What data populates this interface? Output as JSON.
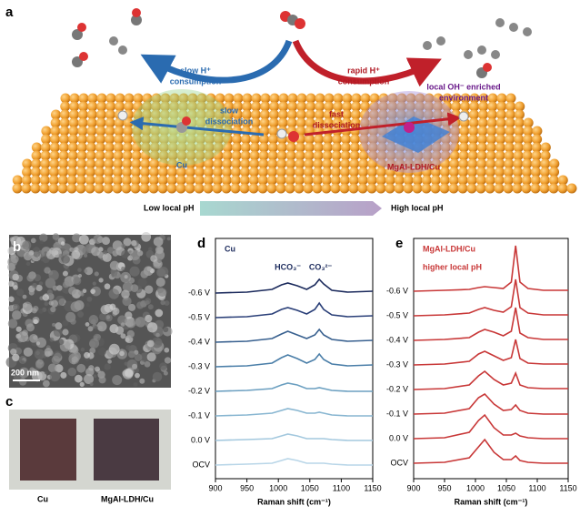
{
  "panel_a": {
    "label": "a",
    "slow_h_consumption": [
      "slow H⁺",
      "consumption"
    ],
    "rapid_h_consumption": [
      "rapid H⁺",
      "consumption"
    ],
    "slow_dissociation": [
      "slow",
      "dissociation"
    ],
    "fast_dissociation": [
      "fast",
      "dissociation"
    ],
    "local_oh": [
      "local OH⁻ enriched",
      "environment"
    ],
    "cu": "Cu",
    "ldh": "MgAl-LDH/Cu",
    "low_ph": "Low local pH",
    "high_ph": "High local pH"
  },
  "panel_b": {
    "label": "b",
    "scale_bar": "200 nm"
  },
  "panel_c": {
    "label": "c",
    "samples": [
      "Cu",
      "MgAl-LDH/Cu"
    ]
  },
  "chart_data": [
    {
      "type": "line",
      "panel_label": "d",
      "title": "Cu",
      "annotations": [
        "HCO₃⁻",
        "CO₃²⁻"
      ],
      "xlabel": "Raman shift (cm⁻¹)",
      "xlim": [
        900,
        1150
      ],
      "xticks": [
        900,
        950,
        1000,
        1050,
        1100,
        1150
      ],
      "x": [
        900,
        950,
        990,
        1005,
        1015,
        1030,
        1045,
        1058,
        1065,
        1072,
        1085,
        1110,
        1150
      ],
      "series": [
        {
          "name": "-0.6 V",
          "color": "#1b2a5c",
          "values": [
            0,
            1,
            4,
            9,
            11,
            8,
            4,
            9,
            15,
            10,
            3,
            1,
            2
          ]
        },
        {
          "name": "-0.5 V",
          "color": "#2a3f78",
          "values": [
            0,
            1,
            4,
            9,
            11,
            8,
            4,
            9,
            16,
            9,
            3,
            1,
            2
          ]
        },
        {
          "name": "-0.4 V",
          "color": "#38608f",
          "values": [
            0,
            1,
            4,
            9,
            12,
            8,
            4,
            8,
            14,
            8,
            3,
            1,
            2
          ]
        },
        {
          "name": "-0.3 V",
          "color": "#4a7ea8",
          "values": [
            0,
            1,
            4,
            10,
            13,
            9,
            4,
            8,
            14,
            8,
            3,
            1,
            2
          ]
        },
        {
          "name": "-0.2 V",
          "color": "#6b9fc0",
          "values": [
            0,
            1,
            3,
            7,
            9,
            7,
            3,
            3,
            4,
            3,
            1,
            0,
            0
          ]
        },
        {
          "name": "-0.1 V",
          "color": "#88b6d1",
          "values": [
            0,
            1,
            3,
            6,
            8,
            6,
            3,
            3,
            4,
            3,
            1,
            0,
            0
          ]
        },
        {
          "name": "0.0 V",
          "color": "#a3c8de",
          "values": [
            0,
            1,
            2,
            5,
            7,
            5,
            2,
            2,
            2,
            2,
            1,
            0,
            0
          ]
        },
        {
          "name": "OCV",
          "color": "#b9d6e8",
          "values": [
            0,
            1,
            2,
            5,
            7,
            5,
            2,
            2,
            2,
            2,
            1,
            0,
            0
          ]
        }
      ]
    },
    {
      "type": "line",
      "panel_label": "e",
      "title": "MgAl-LDH/Cu",
      "annotations": [
        "higher local pH"
      ],
      "xlabel": "Raman shift (cm⁻¹)",
      "xlim": [
        900,
        1150
      ],
      "xticks": [
        900,
        950,
        1000,
        1050,
        1100,
        1150
      ],
      "x": [
        900,
        950,
        990,
        1005,
        1015,
        1030,
        1045,
        1058,
        1065,
        1072,
        1085,
        1110,
        1150
      ],
      "series": [
        {
          "name": "-0.6 V",
          "color": "#c83737",
          "values": [
            0,
            1,
            2,
            4,
            5,
            4,
            3,
            10,
            50,
            10,
            3,
            1,
            1
          ]
        },
        {
          "name": "-0.5 V",
          "color": "#c83737",
          "values": [
            0,
            1,
            3,
            7,
            9,
            6,
            4,
            10,
            40,
            9,
            3,
            1,
            1
          ]
        },
        {
          "name": "-0.4 V",
          "color": "#c83737",
          "values": [
            0,
            1,
            3,
            9,
            12,
            9,
            5,
            10,
            36,
            8,
            3,
            1,
            1
          ]
        },
        {
          "name": "-0.3 V",
          "color": "#c83737",
          "values": [
            0,
            1,
            4,
            12,
            15,
            10,
            5,
            8,
            28,
            7,
            2,
            1,
            1
          ]
        },
        {
          "name": "-0.2 V",
          "color": "#c83737",
          "values": [
            0,
            1,
            5,
            15,
            20,
            11,
            5,
            7,
            18,
            5,
            2,
            1,
            1
          ]
        },
        {
          "name": "-0.1 V",
          "color": "#c83737",
          "values": [
            0,
            1,
            6,
            18,
            22,
            11,
            4,
            5,
            10,
            4,
            1,
            0,
            0
          ]
        },
        {
          "name": "0.0 V",
          "color": "#c83737",
          "values": [
            0,
            1,
            7,
            20,
            26,
            12,
            4,
            4,
            6,
            3,
            1,
            0,
            0
          ]
        },
        {
          "name": "OCV",
          "color": "#c83737",
          "values": [
            0,
            1,
            6,
            18,
            26,
            12,
            4,
            4,
            8,
            3,
            1,
            0,
            0
          ]
        }
      ]
    }
  ]
}
